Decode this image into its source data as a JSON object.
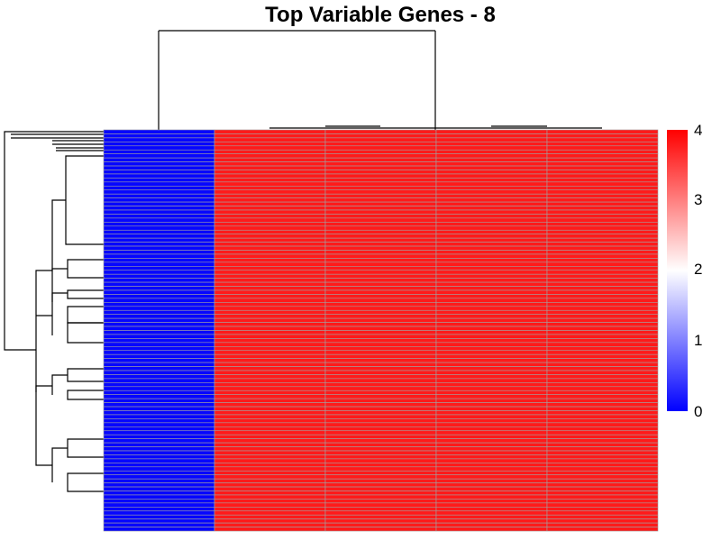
{
  "chart_data": {
    "type": "heatmap",
    "title": "Top Variable Genes - 8",
    "n_rows": 100,
    "n_cols": 5,
    "column_values": [
      0.05,
      3.8,
      3.8,
      3.8,
      3.8
    ],
    "colorbar": {
      "min": 0,
      "max": 4,
      "ticks": [
        "0",
        "1",
        "2",
        "3",
        "4"
      ],
      "colors": [
        "#0000ff",
        "#ffffff",
        "#ff0000"
      ]
    },
    "cell_border_color": "#a0a0a0",
    "row_dendrogram": true,
    "column_dendrogram": true,
    "row_labels_shown": false,
    "column_labels_shown": false
  }
}
